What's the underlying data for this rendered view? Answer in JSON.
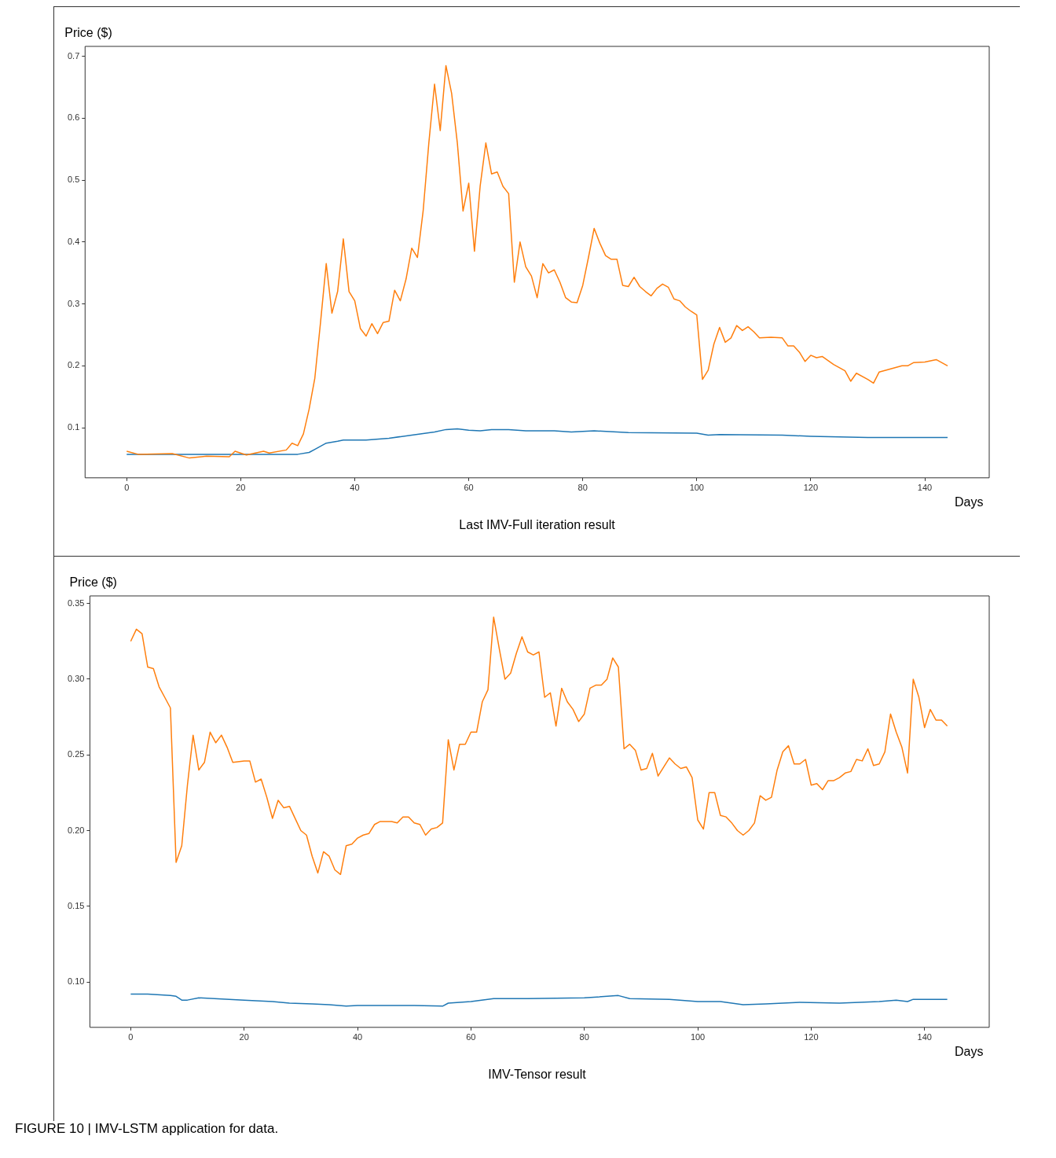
{
  "chart_data": [
    {
      "type": "line",
      "ylabel": "Price ($)",
      "xlabel": "Days",
      "annotations": [
        "Last IMV-Full iteration result"
      ],
      "xlim": [
        -7.3,
        151.3
      ],
      "xticks": [
        0,
        20,
        40,
        60,
        80,
        100,
        120,
        140
      ],
      "ylim": [
        0.019,
        0.716
      ],
      "yticks": [
        0.1,
        0.2,
        0.3,
        0.4,
        0.5,
        0.6,
        0.7
      ],
      "series": [
        {
          "color": "#1f77b4",
          "x": [
            0,
            30,
            32,
            33,
            35,
            37,
            38,
            42,
            46,
            50,
            54,
            56,
            58,
            60,
            62,
            64,
            67,
            70,
            75,
            78,
            82,
            88,
            100,
            102,
            104,
            115,
            120,
            130,
            144
          ],
          "values": [
            0.057,
            0.057,
            0.06,
            0.065,
            0.075,
            0.078,
            0.08,
            0.08,
            0.083,
            0.088,
            0.093,
            0.097,
            0.098,
            0.096,
            0.095,
            0.097,
            0.097,
            0.095,
            0.095,
            0.093,
            0.095,
            0.092,
            0.091,
            0.088,
            0.089,
            0.088,
            0.086,
            0.084,
            0.084
          ]
        },
        {
          "color": "#ff7f0e",
          "x": [
            0,
            2,
            8,
            11,
            14,
            18,
            19,
            21,
            24,
            25,
            28,
            29,
            30,
            31,
            32,
            33,
            34,
            35,
            36,
            37,
            38,
            39,
            40,
            41,
            42,
            43,
            44,
            45,
            46,
            47,
            48,
            49,
            50,
            51,
            52,
            53,
            54,
            55,
            56,
            57,
            58,
            59,
            60,
            61,
            62,
            63,
            64,
            65,
            66,
            67,
            68,
            69,
            70,
            71,
            72,
            73,
            74,
            75,
            76,
            77,
            78,
            79,
            80,
            81,
            82,
            83,
            84,
            85,
            86,
            87,
            88,
            89,
            90,
            91,
            92,
            93,
            94,
            95,
            96,
            97,
            98,
            99,
            100,
            101,
            102,
            103,
            104,
            105,
            106,
            107,
            108,
            109,
            110,
            111,
            113,
            115,
            116,
            117,
            118,
            119,
            120,
            121,
            122,
            124,
            126,
            127,
            128,
            130,
            131,
            132,
            134,
            136,
            137,
            138,
            140,
            142,
            143,
            144
          ],
          "values": [
            0.062,
            0.057,
            0.058,
            0.051,
            0.054,
            0.053,
            0.062,
            0.056,
            0.062,
            0.059,
            0.064,
            0.075,
            0.071,
            0.09,
            0.13,
            0.18,
            0.27,
            0.365,
            0.285,
            0.32,
            0.405,
            0.32,
            0.305,
            0.26,
            0.248,
            0.268,
            0.252,
            0.27,
            0.272,
            0.322,
            0.305,
            0.34,
            0.39,
            0.375,
            0.45,
            0.56,
            0.655,
            0.58,
            0.685,
            0.64,
            0.56,
            0.45,
            0.495,
            0.385,
            0.49,
            0.56,
            0.51,
            0.513,
            0.49,
            0.478,
            0.335,
            0.4,
            0.36,
            0.345,
            0.31,
            0.365,
            0.35,
            0.355,
            0.335,
            0.31,
            0.303,
            0.302,
            0.33,
            0.375,
            0.422,
            0.398,
            0.378,
            0.372,
            0.372,
            0.33,
            0.328,
            0.343,
            0.328,
            0.32,
            0.313,
            0.325,
            0.332,
            0.327,
            0.308,
            0.305,
            0.295,
            0.288,
            0.282,
            0.178,
            0.193,
            0.235,
            0.262,
            0.238,
            0.245,
            0.265,
            0.257,
            0.263,
            0.255,
            0.245,
            0.246,
            0.245,
            0.232,
            0.232,
            0.222,
            0.207,
            0.217,
            0.213,
            0.215,
            0.202,
            0.192,
            0.175,
            0.188,
            0.178,
            0.172,
            0.19,
            0.195,
            0.2,
            0.2,
            0.205,
            0.206,
            0.21,
            0.205,
            0.2
          ]
        }
      ]
    },
    {
      "type": "line",
      "ylabel": "Price ($)",
      "xlabel": "Days",
      "annotations": [
        "IMV-Tensor result",
        "FIGURE 10 | IMV-LSTM application for data."
      ],
      "xlim": [
        -7.2,
        151.4
      ],
      "xticks": [
        0,
        20,
        40,
        60,
        80,
        100,
        120,
        140
      ],
      "ylim": [
        0.07,
        0.355
      ],
      "yticks": [
        {
          "value": 0.1,
          "label": "0.10"
        },
        {
          "value": 0.15,
          "label": "0.15"
        },
        {
          "value": 0.2,
          "label": "0.20"
        },
        {
          "value": 0.25,
          "label": "0.25"
        },
        {
          "value": 0.3,
          "label": "0.30"
        },
        {
          "value": 0.35,
          "label": "0.35"
        }
      ],
      "series": [
        {
          "color": "#1f77b4",
          "x": [
            0,
            3,
            7,
            8,
            9,
            10,
            12,
            20,
            25,
            28,
            32,
            35,
            38,
            40,
            50,
            55,
            56,
            60,
            64,
            70,
            80,
            86,
            88,
            95,
            100,
            104,
            108,
            112,
            118,
            125,
            132,
            135,
            137,
            138,
            144
          ],
          "values": [
            0.092,
            0.092,
            0.091,
            0.0905,
            0.088,
            0.088,
            0.0895,
            0.088,
            0.087,
            0.086,
            0.0855,
            0.085,
            0.084,
            0.0845,
            0.0845,
            0.084,
            0.086,
            0.087,
            0.089,
            0.089,
            0.0895,
            0.091,
            0.089,
            0.0885,
            0.087,
            0.087,
            0.085,
            0.0855,
            0.0865,
            0.086,
            0.087,
            0.088,
            0.087,
            0.0885,
            0.0885
          ]
        },
        {
          "color": "#ff7f0e",
          "x": [
            0,
            1,
            2,
            3,
            4,
            5,
            6,
            7,
            8,
            9,
            10,
            11,
            12,
            13,
            14,
            15,
            16,
            17,
            18,
            20,
            21,
            22,
            23,
            24,
            25,
            26,
            27,
            28,
            29,
            30,
            31,
            32,
            33,
            34,
            35,
            36,
            37,
            38,
            39,
            40,
            41,
            42,
            43,
            44,
            46,
            47,
            48,
            49,
            50,
            51,
            52,
            53,
            54,
            55,
            56,
            57,
            58,
            59,
            60,
            61,
            62,
            63,
            64,
            65,
            66,
            67,
            68,
            69,
            70,
            71,
            72,
            73,
            74,
            75,
            76,
            77,
            78,
            79,
            80,
            81,
            82,
            83,
            84,
            85,
            86,
            87,
            88,
            89,
            90,
            91,
            92,
            93,
            94,
            95,
            96,
            97,
            98,
            99,
            100,
            101,
            102,
            103,
            104,
            105,
            106,
            107,
            108,
            109,
            110,
            111,
            112,
            113,
            114,
            115,
            116,
            117,
            118,
            119,
            120,
            121,
            122,
            123,
            124,
            125,
            126,
            127,
            128,
            129,
            130,
            131,
            132,
            133,
            134,
            135,
            136,
            137,
            138,
            139,
            140,
            141,
            142,
            143,
            144
          ],
          "values": [
            0.325,
            0.333,
            0.33,
            0.308,
            0.307,
            0.295,
            0.288,
            0.281,
            0.179,
            0.19,
            0.23,
            0.263,
            0.24,
            0.245,
            0.265,
            0.258,
            0.263,
            0.255,
            0.245,
            0.246,
            0.246,
            0.232,
            0.234,
            0.222,
            0.208,
            0.22,
            0.215,
            0.216,
            0.208,
            0.2,
            0.197,
            0.183,
            0.172,
            0.186,
            0.183,
            0.174,
            0.171,
            0.19,
            0.191,
            0.195,
            0.197,
            0.198,
            0.204,
            0.206,
            0.206,
            0.205,
            0.209,
            0.209,
            0.205,
            0.204,
            0.197,
            0.201,
            0.202,
            0.205,
            0.26,
            0.24,
            0.257,
            0.257,
            0.265,
            0.265,
            0.285,
            0.293,
            0.341,
            0.32,
            0.3,
            0.304,
            0.317,
            0.328,
            0.318,
            0.316,
            0.318,
            0.288,
            0.291,
            0.269,
            0.294,
            0.285,
            0.28,
            0.272,
            0.277,
            0.294,
            0.296,
            0.296,
            0.3,
            0.314,
            0.308,
            0.254,
            0.257,
            0.253,
            0.24,
            0.241,
            0.251,
            0.236,
            0.242,
            0.248,
            0.244,
            0.241,
            0.242,
            0.235,
            0.207,
            0.201,
            0.225,
            0.225,
            0.21,
            0.209,
            0.205,
            0.2,
            0.197,
            0.2,
            0.205,
            0.223,
            0.22,
            0.222,
            0.24,
            0.252,
            0.256,
            0.244,
            0.244,
            0.247,
            0.23,
            0.231,
            0.227,
            0.233,
            0.233,
            0.235,
            0.238,
            0.239,
            0.247,
            0.246,
            0.254,
            0.243,
            0.244,
            0.252,
            0.277,
            0.265,
            0.255,
            0.238,
            0.3,
            0.288,
            0.268,
            0.28,
            0.273,
            0.273,
            0.269
          ]
        }
      ]
    }
  ]
}
